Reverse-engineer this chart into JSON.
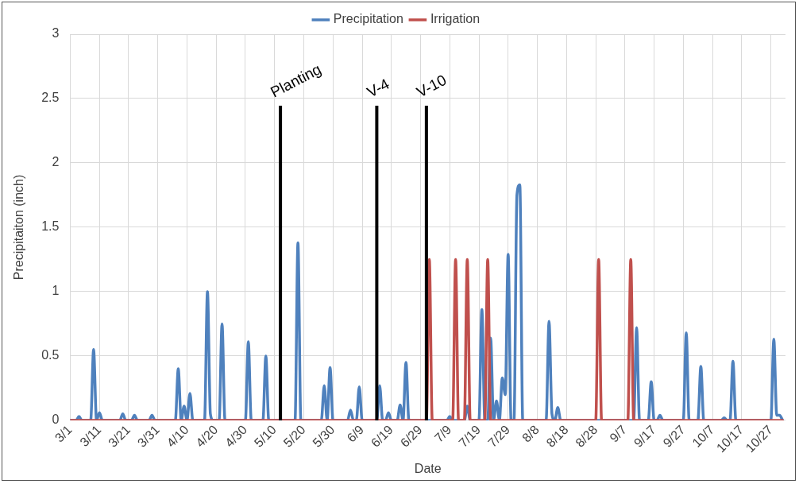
{
  "chart_data": {
    "type": "line",
    "xlabel": "Date",
    "ylabel": "Precipitaiton (inch)",
    "xlim": [
      "--03-01",
      "--11-01"
    ],
    "ylim": [
      0,
      3
    ],
    "yticks": [
      0,
      0.5,
      1,
      1.5,
      2,
      2.5,
      3
    ],
    "xticks": [
      {
        "value": "--03-01",
        "label": "3/1"
      },
      {
        "value": "--03-11",
        "label": "3/11"
      },
      {
        "value": "--03-21",
        "label": "3/21"
      },
      {
        "value": "--03-31",
        "label": "3/31"
      },
      {
        "value": "--04-10",
        "label": "4/10"
      },
      {
        "value": "--04-20",
        "label": "4/20"
      },
      {
        "value": "--04-30",
        "label": "4/30"
      },
      {
        "value": "--05-10",
        "label": "5/10"
      },
      {
        "value": "--05-20",
        "label": "5/20"
      },
      {
        "value": "--05-30",
        "label": "5/30"
      },
      {
        "value": "--06-09",
        "label": "6/9"
      },
      {
        "value": "--06-19",
        "label": "6/19"
      },
      {
        "value": "--06-29",
        "label": "6/29"
      },
      {
        "value": "--07-09",
        "label": "7/9"
      },
      {
        "value": "--07-19",
        "label": "7/19"
      },
      {
        "value": "--07-29",
        "label": "7/29"
      },
      {
        "value": "--08-08",
        "label": "8/8"
      },
      {
        "value": "--08-18",
        "label": "8/18"
      },
      {
        "value": "--08-28",
        "label": "8/28"
      },
      {
        "value": "--09-07",
        "label": "9/7"
      },
      {
        "value": "--09-17",
        "label": "9/17"
      },
      {
        "value": "--09-27",
        "label": "9/27"
      },
      {
        "value": "--10-07",
        "label": "10/7"
      },
      {
        "value": "--10-17",
        "label": "10/17"
      },
      {
        "value": "--10-27",
        "label": "10/27"
      }
    ],
    "grid": true,
    "legend": "top",
    "marker": "none",
    "line_style": "solid",
    "ref_lines": [
      {
        "axis": "x",
        "value": "--05-12",
        "label": "Planting",
        "color": "#000000"
      },
      {
        "axis": "x",
        "value": "--06-14",
        "label": "V-4",
        "color": "#000000"
      },
      {
        "axis": "x",
        "value": "--07-01",
        "label": "V-10",
        "color": "#000000"
      }
    ],
    "series": [
      {
        "name": "Precipitation",
        "color": "#4f81bd",
        "x": [
          "--03-01",
          "--03-03",
          "--03-04",
          "--03-05",
          "--03-08",
          "--03-09",
          "--03-10",
          "--03-11",
          "--03-12",
          "--03-18",
          "--03-19",
          "--03-20",
          "--03-22",
          "--03-23",
          "--03-24",
          "--03-28",
          "--03-29",
          "--03-30",
          "--04-06",
          "--04-07",
          "--04-08",
          "--04-09",
          "--04-10",
          "--04-11",
          "--04-12",
          "--04-16",
          "--04-17",
          "--04-18",
          "--04-19",
          "--04-21",
          "--04-22",
          "--04-23",
          "--04-30",
          "--05-01",
          "--05-02",
          "--05-06",
          "--05-07",
          "--05-08",
          "--05-17",
          "--05-18",
          "--05-19",
          "--05-26",
          "--05-27",
          "--05-28",
          "--05-29",
          "--05-30",
          "--06-04",
          "--06-05",
          "--06-06",
          "--06-07",
          "--06-08",
          "--06-09",
          "--06-14",
          "--06-15",
          "--06-16",
          "--06-17",
          "--06-18",
          "--06-19",
          "--06-21",
          "--06-22",
          "--06-23",
          "--06-24",
          "--06-25",
          "--07-08",
          "--07-09",
          "--07-10",
          "--07-14",
          "--07-15",
          "--07-16",
          "--07-19",
          "--07-20",
          "--07-21",
          "--07-22",
          "--07-23",
          "--07-24",
          "--07-25",
          "--07-26",
          "--07-27",
          "--07-28",
          "--07-29",
          "--07-30",
          "--07-31",
          "--08-01",
          "--08-02",
          "--08-03",
          "--08-11",
          "--08-12",
          "--08-13",
          "--08-14",
          "--08-15",
          "--08-16",
          "--09-10",
          "--09-11",
          "--09-12",
          "--09-15",
          "--09-16",
          "--09-17",
          "--09-18",
          "--09-19",
          "--09-20",
          "--09-27",
          "--09-28",
          "--09-29",
          "--10-02",
          "--10-03",
          "--10-04",
          "--10-10",
          "--10-11",
          "--10-12",
          "--10-13",
          "--10-14",
          "--10-15",
          "--10-27",
          "--10-28",
          "--10-29",
          "--10-30",
          "--10-31"
        ],
        "values": [
          0,
          0,
          0.03,
          0,
          0,
          0.55,
          0,
          0.06,
          0,
          0,
          0.05,
          0,
          0,
          0.04,
          0,
          0,
          0.04,
          0,
          0,
          0.4,
          0,
          0.11,
          0,
          0.21,
          0,
          0,
          1.0,
          0.05,
          0,
          0,
          0.75,
          0,
          0,
          0.61,
          0,
          0,
          0.5,
          0,
          0,
          1.38,
          0,
          0,
          0.27,
          0,
          0.41,
          0,
          0,
          0.08,
          0,
          0,
          0.26,
          0,
          0,
          0.27,
          0,
          0,
          0.06,
          0,
          0,
          0.12,
          0,
          0.45,
          0,
          0,
          0.03,
          0,
          0,
          0.11,
          0,
          0,
          0.86,
          0,
          0,
          0.64,
          0,
          0.15,
          0,
          0.33,
          0.2,
          1.29,
          0,
          0,
          1.75,
          1.83,
          0,
          0,
          0.77,
          0.05,
          0,
          0.1,
          0,
          0,
          0.72,
          0,
          0,
          0.3,
          0,
          0,
          0.04,
          0,
          0,
          0.68,
          0,
          0,
          0.42,
          0,
          0,
          0.02,
          0,
          0,
          0.46,
          0,
          0,
          0.63,
          0.04,
          0.04,
          0
        ]
      },
      {
        "name": "Irrigation",
        "color": "#c0504d",
        "x": [
          "--03-01",
          "--07-01",
          "--07-02",
          "--07-03",
          "--07-10",
          "--07-11",
          "--07-12",
          "--07-14",
          "--07-15",
          "--07-16",
          "--07-21",
          "--07-22",
          "--07-23",
          "--08-28",
          "--08-29",
          "--08-30",
          "--09-08",
          "--09-09",
          "--09-10",
          "--10-31"
        ],
        "values": [
          0,
          0,
          1.25,
          0,
          0,
          1.25,
          0,
          0,
          1.25,
          0,
          0,
          1.25,
          0,
          0,
          1.25,
          0,
          0,
          1.25,
          0,
          0
        ]
      }
    ]
  }
}
